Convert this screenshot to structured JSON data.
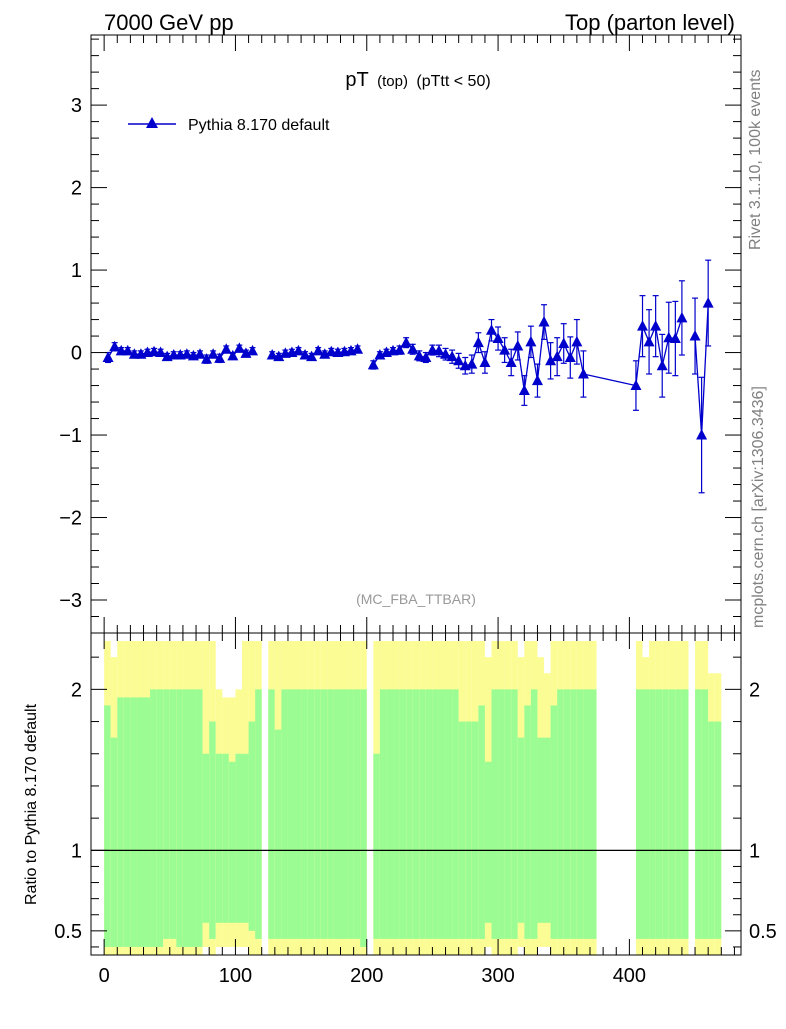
{
  "header": {
    "left": "7000 GeV pp",
    "right": "Top (parton level)"
  },
  "side": {
    "rivet": "Rivet 3.1.10,  100k events",
    "mcplots": "mcplots.cern.ch [arXiv:1306.3436]"
  },
  "colors": {
    "series": "#0000cc",
    "band_inner": "#9cfc94",
    "band_outer": "#fcfc94",
    "axis": "#000000",
    "watermark": "#999999"
  },
  "chart_data": [
    {
      "type": "line",
      "title_main": "pT",
      "title_sub": "(top)",
      "title_cut": "(pTtt < 50)",
      "watermark": "(MC_FBA_TTBAR)",
      "legend": "Pythia 8.170 default",
      "xlim": [
        -10,
        485
      ],
      "ylim": [
        -3.4,
        3.85
      ],
      "yticks": [
        -3,
        -2,
        -1,
        0,
        1,
        2,
        3
      ],
      "ytick_labels": [
        "−3",
        "−2",
        "−1",
        "0",
        "1",
        "2",
        "3"
      ],
      "series": [
        {
          "name": "Pythia 8.170 default",
          "points": [
            [
              3,
              -0.06,
              0.06
            ],
            [
              8,
              0.07,
              0.05
            ],
            [
              13,
              0.02,
              0.04
            ],
            [
              18,
              0.02,
              0.04
            ],
            [
              23,
              -0.02,
              0.04
            ],
            [
              28,
              -0.02,
              0.04
            ],
            [
              33,
              0.0,
              0.04
            ],
            [
              38,
              0.01,
              0.04
            ],
            [
              43,
              0.0,
              0.04
            ],
            [
              48,
              -0.05,
              0.04
            ],
            [
              53,
              -0.03,
              0.04
            ],
            [
              58,
              -0.03,
              0.04
            ],
            [
              63,
              -0.02,
              0.04
            ],
            [
              68,
              -0.04,
              0.04
            ],
            [
              73,
              -0.02,
              0.04
            ],
            [
              78,
              -0.08,
              0.05
            ],
            [
              83,
              -0.02,
              0.04
            ],
            [
              88,
              -0.07,
              0.05
            ],
            [
              93,
              0.04,
              0.04
            ],
            [
              98,
              -0.04,
              0.04
            ],
            [
              103,
              0.05,
              0.04
            ],
            [
              108,
              -0.01,
              0.04
            ],
            [
              113,
              0.02,
              0.04
            ],
            [
              128,
              -0.03,
              0.04
            ],
            [
              133,
              -0.05,
              0.04
            ],
            [
              138,
              -0.01,
              0.04
            ],
            [
              143,
              0.0,
              0.04
            ],
            [
              148,
              0.02,
              0.04
            ],
            [
              153,
              -0.03,
              0.04
            ],
            [
              158,
              -0.05,
              0.04
            ],
            [
              163,
              0.02,
              0.04
            ],
            [
              168,
              -0.02,
              0.04
            ],
            [
              173,
              0.01,
              0.04
            ],
            [
              178,
              0.0,
              0.04
            ],
            [
              183,
              0.01,
              0.04
            ],
            [
              188,
              0.02,
              0.04
            ],
            [
              193,
              0.04,
              0.04
            ],
            [
              205,
              -0.15,
              0.05
            ],
            [
              210,
              -0.03,
              0.04
            ],
            [
              215,
              0.0,
              0.04
            ],
            [
              220,
              0.02,
              0.04
            ],
            [
              225,
              0.03,
              0.05
            ],
            [
              230,
              0.12,
              0.06
            ],
            [
              235,
              0.04,
              0.06
            ],
            [
              240,
              -0.04,
              0.06
            ],
            [
              245,
              -0.06,
              0.06
            ],
            [
              250,
              0.03,
              0.06
            ],
            [
              255,
              0.02,
              0.07
            ],
            [
              260,
              -0.02,
              0.07
            ],
            [
              265,
              -0.05,
              0.08
            ],
            [
              270,
              -0.1,
              0.09
            ],
            [
              275,
              -0.16,
              0.1
            ],
            [
              280,
              -0.14,
              0.11
            ],
            [
              285,
              0.12,
              0.12
            ],
            [
              290,
              -0.12,
              0.13
            ],
            [
              295,
              0.27,
              0.13
            ],
            [
              300,
              0.17,
              0.14
            ],
            [
              305,
              0.03,
              0.15
            ],
            [
              310,
              -0.12,
              0.16
            ],
            [
              315,
              0.08,
              0.17
            ],
            [
              320,
              -0.46,
              0.18
            ],
            [
              325,
              0.13,
              0.19
            ],
            [
              330,
              -0.34,
              0.2
            ],
            [
              335,
              0.37,
              0.21
            ],
            [
              340,
              -0.1,
              0.22
            ],
            [
              345,
              -0.05,
              0.23
            ],
            [
              350,
              0.11,
              0.24
            ],
            [
              355,
              -0.06,
              0.25
            ],
            [
              360,
              0.13,
              0.27
            ],
            [
              365,
              -0.26,
              0.28
            ],
            [
              405,
              -0.4,
              0.3
            ],
            [
              410,
              0.32,
              0.37
            ],
            [
              415,
              0.13,
              0.39
            ],
            [
              420,
              0.32,
              0.37
            ],
            [
              425,
              -0.16,
              0.38
            ],
            [
              430,
              0.18,
              0.43
            ],
            [
              435,
              0.17,
              0.45
            ],
            [
              440,
              0.42,
              0.45
            ],
            [
              450,
              0.2,
              0.46
            ],
            [
              455,
              -1.0,
              0.7
            ],
            [
              460,
              0.6,
              0.52
            ]
          ]
        }
      ]
    },
    {
      "type": "area",
      "ylabel": "Ratio to Pythia 8.170 default",
      "xlabel": "",
      "xlim": [
        -10,
        485
      ],
      "ylim": [
        0.35,
        2.35
      ],
      "yticks": [
        0.5,
        1,
        2
      ],
      "ytick_labels": [
        "0.5",
        "1",
        "2"
      ],
      "xticks": [
        0,
        100,
        200,
        300,
        400
      ],
      "xtick_labels": [
        "0",
        "100",
        "200",
        "300",
        "400"
      ],
      "reference_line": 1,
      "bin_width": 5,
      "bands": [
        [
          0,
          1.9,
          2.3,
          0.4,
          0.35
        ],
        [
          5,
          1.7,
          2.2,
          0.4,
          0.35
        ],
        [
          10,
          1.95,
          2.3,
          0.4,
          0.35
        ],
        [
          15,
          1.95,
          2.3,
          0.4,
          0.35
        ],
        [
          20,
          1.95,
          2.3,
          0.4,
          0.35
        ],
        [
          25,
          1.95,
          2.3,
          0.4,
          0.35
        ],
        [
          30,
          1.95,
          2.3,
          0.4,
          0.35
        ],
        [
          35,
          2.0,
          2.3,
          0.4,
          0.35
        ],
        [
          40,
          2.0,
          2.3,
          0.4,
          0.35
        ],
        [
          45,
          2.0,
          2.3,
          0.45,
          0.35
        ],
        [
          50,
          2.0,
          2.3,
          0.45,
          0.35
        ],
        [
          55,
          2.0,
          2.3,
          0.4,
          0.35
        ],
        [
          60,
          2.0,
          2.3,
          0.4,
          0.35
        ],
        [
          65,
          2.0,
          2.3,
          0.4,
          0.35
        ],
        [
          70,
          2.0,
          2.3,
          0.4,
          0.35
        ],
        [
          75,
          1.6,
          2.3,
          0.55,
          0.4
        ],
        [
          80,
          1.8,
          2.3,
          0.45,
          0.35
        ],
        [
          85,
          1.6,
          2.0,
          0.55,
          0.4
        ],
        [
          90,
          1.6,
          1.95,
          0.55,
          0.4
        ],
        [
          95,
          1.55,
          1.95,
          0.55,
          0.4
        ],
        [
          100,
          1.6,
          2.0,
          0.55,
          0.4
        ],
        [
          105,
          1.6,
          2.3,
          0.55,
          0.4
        ],
        [
          110,
          1.8,
          2.3,
          0.5,
          0.35
        ],
        [
          115,
          2.0,
          2.3,
          0.45,
          0.35
        ],
        [
          125,
          2.0,
          2.3,
          0.45,
          0.35
        ],
        [
          130,
          1.75,
          2.3,
          0.45,
          0.35
        ],
        [
          135,
          2.0,
          2.3,
          0.45,
          0.35
        ],
        [
          140,
          2.0,
          2.3,
          0.45,
          0.35
        ],
        [
          145,
          2.0,
          2.3,
          0.45,
          0.35
        ],
        [
          150,
          2.0,
          2.3,
          0.45,
          0.35
        ],
        [
          155,
          2.0,
          2.3,
          0.45,
          0.35
        ],
        [
          160,
          2.0,
          2.3,
          0.45,
          0.35
        ],
        [
          165,
          2.0,
          2.3,
          0.45,
          0.35
        ],
        [
          170,
          2.0,
          2.3,
          0.45,
          0.35
        ],
        [
          175,
          2.0,
          2.3,
          0.45,
          0.35
        ],
        [
          180,
          2.0,
          2.3,
          0.45,
          0.35
        ],
        [
          185,
          2.0,
          2.3,
          0.45,
          0.35
        ],
        [
          190,
          2.0,
          2.3,
          0.45,
          0.35
        ],
        [
          195,
          2.0,
          2.3,
          0.4,
          0.35
        ],
        [
          205,
          1.6,
          2.3,
          0.45,
          0.35
        ],
        [
          210,
          2.0,
          2.3,
          0.45,
          0.35
        ],
        [
          215,
          2.0,
          2.3,
          0.45,
          0.35
        ],
        [
          220,
          2.0,
          2.3,
          0.45,
          0.35
        ],
        [
          225,
          2.0,
          2.3,
          0.45,
          0.35
        ],
        [
          230,
          2.0,
          2.3,
          0.45,
          0.35
        ],
        [
          235,
          2.0,
          2.3,
          0.45,
          0.35
        ],
        [
          240,
          2.0,
          2.3,
          0.45,
          0.35
        ],
        [
          245,
          2.0,
          2.3,
          0.45,
          0.35
        ],
        [
          250,
          2.0,
          2.3,
          0.45,
          0.35
        ],
        [
          255,
          2.0,
          2.3,
          0.45,
          0.35
        ],
        [
          260,
          2.0,
          2.3,
          0.45,
          0.35
        ],
        [
          265,
          2.0,
          2.3,
          0.45,
          0.35
        ],
        [
          270,
          1.8,
          2.3,
          0.45,
          0.35
        ],
        [
          275,
          1.8,
          2.3,
          0.45,
          0.35
        ],
        [
          280,
          1.8,
          2.3,
          0.45,
          0.35
        ],
        [
          285,
          1.9,
          2.3,
          0.45,
          0.35
        ],
        [
          290,
          1.55,
          2.2,
          0.55,
          0.4
        ],
        [
          295,
          2.0,
          2.3,
          0.45,
          0.35
        ],
        [
          300,
          2.0,
          2.3,
          0.45,
          0.35
        ],
        [
          305,
          2.0,
          2.3,
          0.45,
          0.35
        ],
        [
          310,
          2.0,
          2.3,
          0.45,
          0.35
        ],
        [
          315,
          1.7,
          2.2,
          0.55,
          0.4
        ],
        [
          320,
          1.9,
          2.3,
          0.45,
          0.35
        ],
        [
          325,
          2.0,
          2.3,
          0.45,
          0.35
        ],
        [
          330,
          1.7,
          2.2,
          0.55,
          0.4
        ],
        [
          335,
          1.7,
          2.1,
          0.55,
          0.4
        ],
        [
          340,
          1.9,
          2.3,
          0.45,
          0.35
        ],
        [
          345,
          2.0,
          2.3,
          0.45,
          0.35
        ],
        [
          350,
          2.0,
          2.3,
          0.45,
          0.35
        ],
        [
          355,
          2.0,
          2.3,
          0.45,
          0.35
        ],
        [
          360,
          2.0,
          2.3,
          0.45,
          0.35
        ],
        [
          365,
          2.0,
          2.3,
          0.45,
          0.35
        ],
        [
          370,
          2.0,
          2.3,
          0.45,
          0.35
        ],
        [
          405,
          2.0,
          2.3,
          0.45,
          0.35
        ],
        [
          410,
          2.0,
          2.2,
          0.45,
          0.35
        ],
        [
          415,
          2.0,
          2.3,
          0.45,
          0.35
        ],
        [
          420,
          2.0,
          2.3,
          0.45,
          0.35
        ],
        [
          425,
          2.0,
          2.3,
          0.45,
          0.35
        ],
        [
          430,
          2.0,
          2.3,
          0.45,
          0.35
        ],
        [
          435,
          2.0,
          2.3,
          0.45,
          0.35
        ],
        [
          440,
          2.0,
          2.3,
          0.45,
          0.35
        ],
        [
          450,
          2.0,
          2.3,
          0.45,
          0.35
        ],
        [
          455,
          2.0,
          2.3,
          0.45,
          0.35
        ],
        [
          460,
          1.8,
          2.1,
          0.45,
          0.35
        ],
        [
          465,
          1.8,
          2.1,
          0.45,
          0.35
        ]
      ]
    }
  ]
}
